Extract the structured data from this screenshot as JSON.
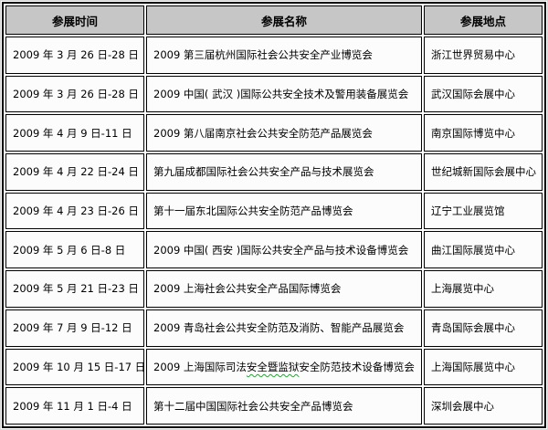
{
  "colors": {
    "header_bg": "#c6c6c6",
    "cell_bg": "#fcfcfc",
    "border_color": "#000000",
    "spellcheck_green": "#2e9e3c"
  },
  "table": {
    "headers": [
      "参展时间",
      "参展名称",
      "参展地点"
    ],
    "rows": [
      {
        "time": "2009 年 3 月 26 日-28 日",
        "name": "2009 第三届杭州国际社会公共安全产业博览会",
        "location": "浙江世界贸易中心"
      },
      {
        "time": "2009 年 3 月 26 日-28 日",
        "name": "2009 中国( 武汉 )国际公共安全技术及警用装备展览会",
        "location": "武汉国际会展中心"
      },
      {
        "time": "2009 年 4 月 9 日-11 日",
        "name": "2009 第八届南京社会公共安全防范产品展览会",
        "location": "南京国际博览中心"
      },
      {
        "time": "2009 年 4 月 22 日-24 日",
        "name": "第九届成都国际社会公共安全产品与技术展览会",
        "location": "世纪城新国际会展中心"
      },
      {
        "time": "2009 年 4 月 23 日-26 日",
        "name": "第十一届东北国际公共安全防范产品博览会",
        "location": "辽宁工业展览馆"
      },
      {
        "time": "2009 年 5 月 6 日-8 日",
        "name": "2009 中国( 西安 )国际公共安全产品与技术设备博览会",
        "location": "曲江国际展览中心"
      },
      {
        "time": "2009 年 5 月 21 日-23 日",
        "name": "2009 上海社会公共安全产品国际博览会",
        "location": "上海展览中心"
      },
      {
        "time": "2009 年 7 月 9 日-12 日",
        "name": "2009 青岛社会公共安全防范及消防、智能产品展览会",
        "location": "青岛国际会展中心"
      },
      {
        "time": "2009 年 10 月 15 日-17 日",
        "name": "2009 上海国际司法安全暨监狱安全防范技术设备博览会",
        "name_parts": {
          "before": "2009 上海国际司法",
          "squiggle": "安全暨监狱",
          "after": "安全防范技术设备博览会"
        },
        "location": "上海国际展览中心"
      },
      {
        "time": "2009 年 11 月 1 日-4 日",
        "name": "第十二届中国国际社会公共安全产品博览会",
        "location": "深圳会展中心"
      }
    ]
  }
}
